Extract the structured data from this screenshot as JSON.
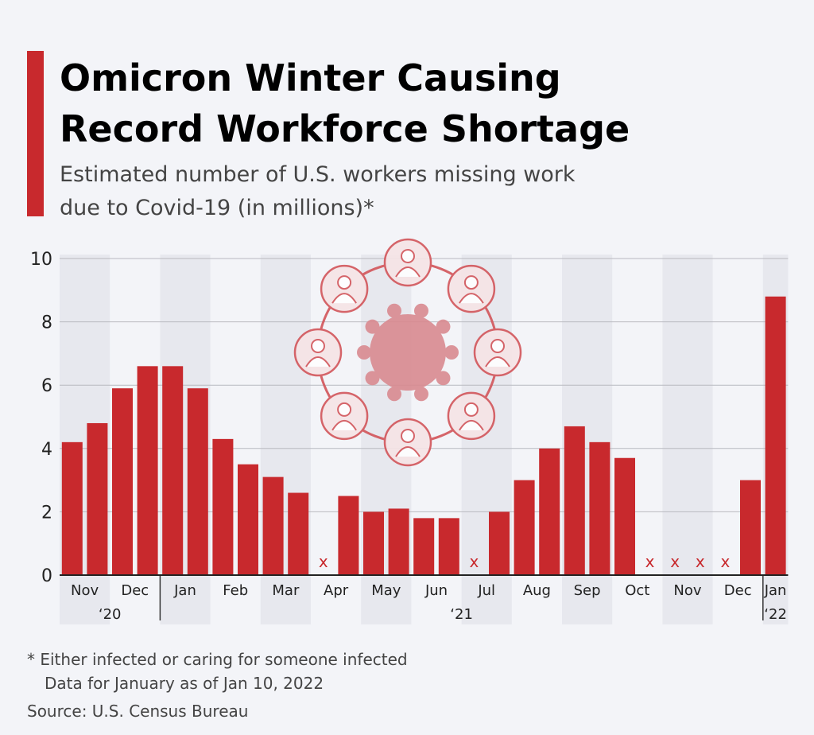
{
  "chart_data": {
    "type": "bar",
    "title": [
      "Omicron Winter Causing",
      "Record Workforce Shortage"
    ],
    "subtitle": [
      "Estimated number of U.S. workers missing work",
      "due to Covid-19 (in millions)*"
    ],
    "categories": [
      "Nov",
      null,
      "Dec",
      null,
      "Jan",
      null,
      "Feb",
      null,
      "Mar",
      null,
      "Apr",
      null,
      "May",
      null,
      "Jun",
      null,
      "Jul",
      null,
      "Aug",
      null,
      "Sep",
      null,
      "Oct",
      null,
      "Nov",
      null,
      "Dec",
      null,
      "Jan"
    ],
    "year_labels": [
      "‘20",
      null,
      null,
      null,
      "‘21",
      null,
      null,
      null,
      null,
      null,
      null,
      null,
      null,
      null,
      null,
      null,
      null,
      null,
      null,
      null,
      null,
      null,
      null,
      null,
      null,
      null,
      null,
      null,
      "‘22"
    ],
    "values": [
      4.2,
      4.8,
      5.9,
      6.6,
      6.6,
      5.9,
      4.3,
      3.5,
      3.1,
      2.6,
      null,
      2.5,
      2.0,
      2.1,
      1.8,
      1.8,
      null,
      2.0,
      3.0,
      4.0,
      4.7,
      4.2,
      3.7,
      null,
      null,
      null,
      null,
      3.0,
      8.8
    ],
    "missing_marker": "x",
    "color": "#c8292d",
    "ylim": [
      0,
      10
    ],
    "yticks": [
      0,
      2,
      4,
      6,
      8,
      10
    ],
    "grid": true,
    "footnotes": [
      "* Either infected or caring for someone infected",
      "Data for January as of Jan 10, 2022"
    ],
    "source": "Source: U.S. Census Bureau"
  }
}
